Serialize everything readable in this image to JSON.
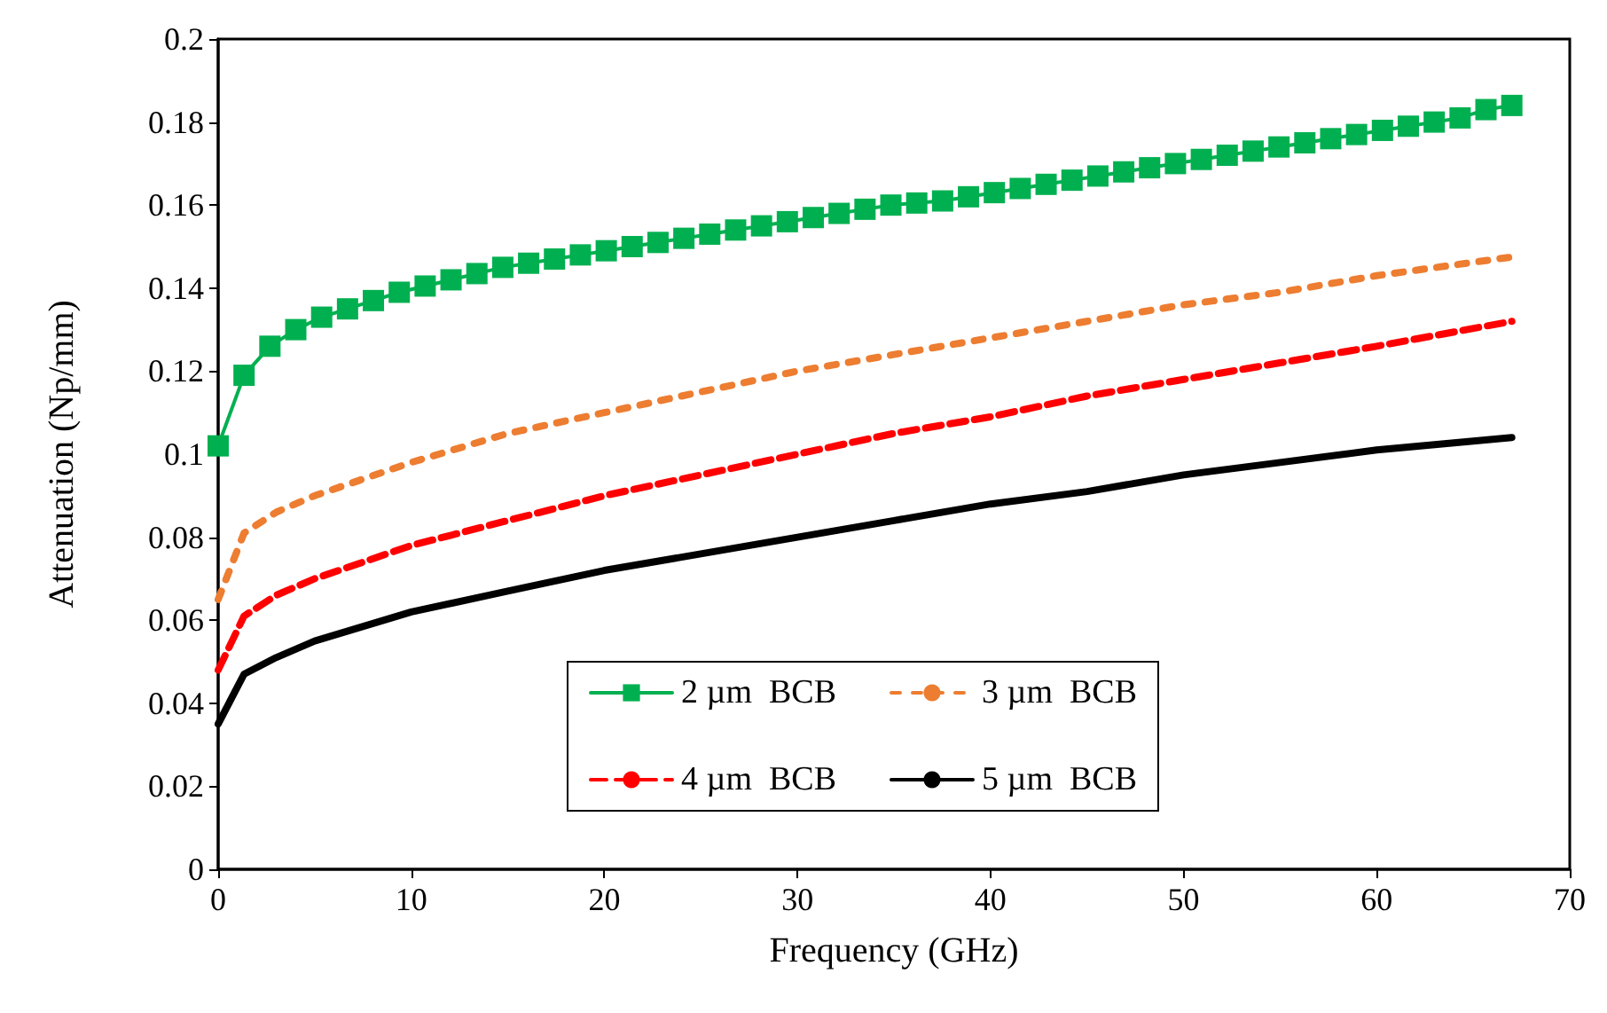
{
  "chart_data": {
    "type": "line",
    "xlabel": "Frequency (GHz)",
    "ylabel": "Attenuation (Np/mm)",
    "xlim": [
      0,
      70
    ],
    "xticks": [
      0,
      10,
      20,
      30,
      40,
      50,
      60,
      70
    ],
    "ylim": [
      0,
      0.2
    ],
    "yticks": [
      0,
      0.02,
      0.04,
      0.06,
      0.08,
      0.1,
      0.12,
      0.14,
      0.16,
      0.18,
      0.2
    ],
    "grid": false,
    "legend": "bottom",
    "series": [
      {
        "name": "2 µm  BCB",
        "color": "#00b050",
        "marker": "square",
        "line_style": "solid",
        "x": [
          0,
          1.34,
          2.68,
          4.02,
          5.36,
          6.7,
          8.04,
          9.38,
          10.72,
          12.06,
          13.4,
          14.74,
          16.08,
          17.42,
          18.76,
          20.1,
          21.44,
          22.78,
          24.12,
          25.46,
          26.8,
          28.14,
          29.48,
          30.82,
          32.16,
          33.5,
          34.84,
          36.18,
          37.52,
          38.86,
          40.2,
          41.54,
          42.88,
          44.22,
          45.56,
          46.9,
          48.24,
          49.58,
          50.92,
          52.26,
          53.6,
          54.94,
          56.28,
          57.62,
          58.96,
          60.3,
          61.64,
          62.98,
          64.32,
          65.66,
          67
        ],
        "values": [
          0.102,
          0.119,
          0.126,
          0.13,
          0.133,
          0.135,
          0.137,
          0.139,
          0.1405,
          0.142,
          0.1435,
          0.145,
          0.146,
          0.147,
          0.148,
          0.149,
          0.15,
          0.151,
          0.152,
          0.153,
          0.154,
          0.155,
          0.156,
          0.157,
          0.158,
          0.159,
          0.16,
          0.1605,
          0.161,
          0.162,
          0.163,
          0.164,
          0.165,
          0.166,
          0.167,
          0.168,
          0.169,
          0.17,
          0.171,
          0.172,
          0.173,
          0.174,
          0.175,
          0.176,
          0.177,
          0.178,
          0.179,
          0.18,
          0.181,
          0.183,
          0.184
        ]
      },
      {
        "name": "3 µm  BCB",
        "color": "#ed7d31",
        "marker": "none",
        "line_style": "dotted",
        "x": [
          0,
          1.34,
          3,
          5,
          10,
          15,
          20,
          25,
          30,
          35,
          40,
          45,
          50,
          55,
          60,
          67
        ],
        "values": [
          0.065,
          0.081,
          0.086,
          0.09,
          0.098,
          0.105,
          0.11,
          0.115,
          0.12,
          0.124,
          0.128,
          0.132,
          0.136,
          0.139,
          0.143,
          0.1475
        ]
      },
      {
        "name": "4 µm  BCB",
        "color": "#ff0000",
        "marker": "none",
        "line_style": "dashed",
        "x": [
          0,
          1.34,
          3,
          5,
          10,
          15,
          20,
          25,
          30,
          35,
          40,
          45,
          50,
          55,
          60,
          67
        ],
        "values": [
          0.048,
          0.061,
          0.066,
          0.07,
          0.078,
          0.084,
          0.09,
          0.095,
          0.1,
          0.105,
          0.109,
          0.114,
          0.118,
          0.122,
          0.126,
          0.132
        ]
      },
      {
        "name": "5 µm  BCB",
        "color": "#000000",
        "marker": "none",
        "line_style": "solid",
        "x": [
          0,
          1.34,
          3,
          5,
          10,
          15,
          20,
          25,
          30,
          35,
          40,
          45,
          50,
          55,
          60,
          67
        ],
        "values": [
          0.035,
          0.047,
          0.051,
          0.055,
          0.062,
          0.067,
          0.072,
          0.076,
          0.08,
          0.084,
          0.088,
          0.091,
          0.095,
          0.098,
          0.101,
          0.104
        ]
      }
    ]
  }
}
